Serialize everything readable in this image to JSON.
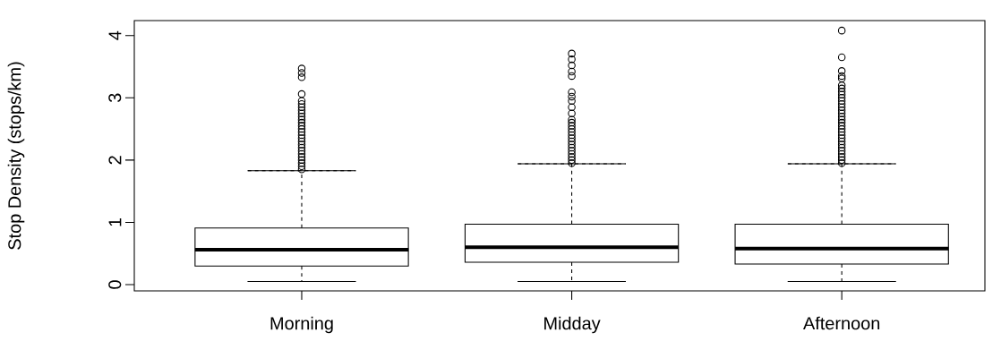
{
  "chart_data": {
    "type": "box",
    "ylabel": "Stop Density (stops/km)",
    "categories": [
      "Morning",
      "Midday",
      "Afternoon"
    ],
    "color": "#000000",
    "marker": "circle",
    "ylim": [
      -0.1,
      4.24
    ],
    "yticks": [
      0,
      1,
      2,
      3,
      4
    ],
    "boxes": [
      {
        "low": 0.05,
        "q1": 0.3,
        "median": 0.56,
        "q3": 0.91,
        "high": 1.83,
        "outliers": [
          1.85,
          1.9,
          1.95,
          2.0,
          2.05,
          2.1,
          2.15,
          2.2,
          2.25,
          2.3,
          2.35,
          2.4,
          2.45,
          2.5,
          2.55,
          2.6,
          2.65,
          2.7,
          2.75,
          2.8,
          2.85,
          2.9,
          2.95,
          3.06,
          3.33,
          3.4,
          3.47
        ]
      },
      {
        "low": 0.05,
        "q1": 0.36,
        "median": 0.6,
        "q3": 0.97,
        "high": 1.94,
        "outliers": [
          1.95,
          2.0,
          2.05,
          2.1,
          2.15,
          2.2,
          2.25,
          2.3,
          2.35,
          2.4,
          2.45,
          2.5,
          2.55,
          2.6,
          2.65,
          2.75,
          2.85,
          2.95,
          3.02,
          3.09,
          3.35,
          3.42,
          3.52,
          3.62,
          3.71
        ]
      },
      {
        "low": 0.05,
        "q1": 0.33,
        "median": 0.58,
        "q3": 0.97,
        "high": 1.94,
        "outliers": [
          1.95,
          2.0,
          2.05,
          2.1,
          2.15,
          2.2,
          2.25,
          2.3,
          2.35,
          2.4,
          2.45,
          2.5,
          2.55,
          2.6,
          2.65,
          2.7,
          2.75,
          2.8,
          2.85,
          2.9,
          2.95,
          3.0,
          3.05,
          3.1,
          3.15,
          3.2,
          3.31,
          3.35,
          3.43,
          3.65,
          4.08
        ]
      }
    ]
  }
}
